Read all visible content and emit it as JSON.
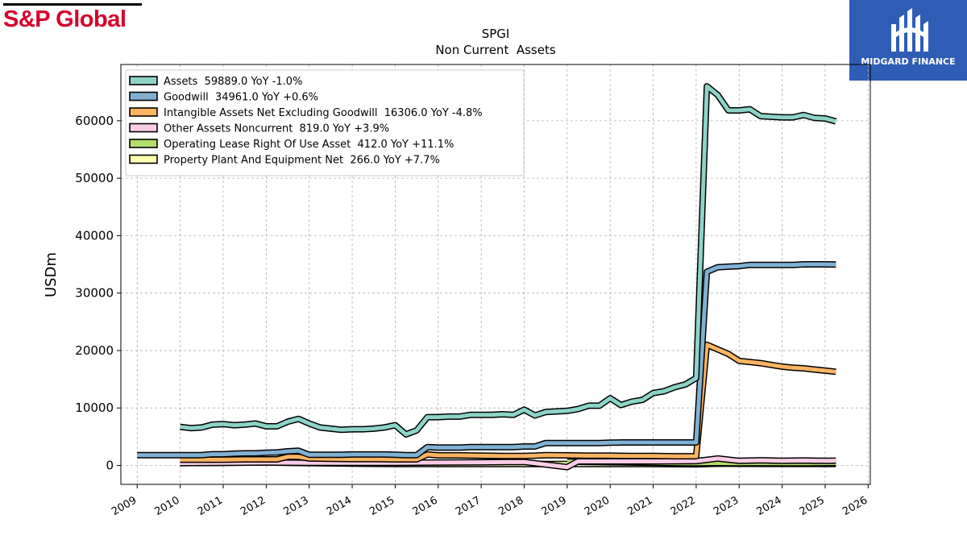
{
  "brand": {
    "name": "S&P Global"
  },
  "badge": {
    "text": "MIDGARD FINANCE"
  },
  "chart_data": {
    "type": "line",
    "title": "SPGI",
    "subtitle": "Non Current  Assets",
    "ylabel": "USDm",
    "xlabel": "",
    "xlim": [
      2008.62,
      2026.05
    ],
    "ylim": [
      -3300,
      69800
    ],
    "xticks": [
      2009,
      2010,
      2011,
      2012,
      2013,
      2014,
      2015,
      2016,
      2017,
      2018,
      2019,
      2020,
      2021,
      2022,
      2023,
      2024,
      2025,
      2026
    ],
    "yticks": [
      0,
      10000,
      20000,
      30000,
      40000,
      50000,
      60000
    ],
    "grid": true,
    "legend_position": "top-left",
    "series": [
      {
        "name": "Assets  59889.0 YoY -1.0%",
        "color": "#8dd3c7",
        "points": [
          [
            2010.0,
            6700
          ],
          [
            2010.25,
            6500
          ],
          [
            2010.5,
            6600
          ],
          [
            2010.75,
            7100
          ],
          [
            2011.0,
            7200
          ],
          [
            2011.25,
            7000
          ],
          [
            2011.5,
            7100
          ],
          [
            2011.75,
            7300
          ],
          [
            2012.0,
            6800
          ],
          [
            2012.25,
            6800
          ],
          [
            2012.5,
            7600
          ],
          [
            2012.75,
            8100
          ],
          [
            2013.0,
            7300
          ],
          [
            2013.25,
            6600
          ],
          [
            2013.5,
            6400
          ],
          [
            2013.75,
            6200
          ],
          [
            2014.0,
            6300
          ],
          [
            2014.25,
            6300
          ],
          [
            2014.5,
            6400
          ],
          [
            2014.75,
            6600
          ],
          [
            2015.0,
            7000
          ],
          [
            2015.25,
            5400
          ],
          [
            2015.5,
            6100
          ],
          [
            2015.75,
            8400
          ],
          [
            2016.0,
            8400
          ],
          [
            2016.25,
            8500
          ],
          [
            2016.5,
            8500
          ],
          [
            2016.75,
            8800
          ],
          [
            2017.0,
            8800
          ],
          [
            2017.25,
            8800
          ],
          [
            2017.5,
            8900
          ],
          [
            2017.75,
            8800
          ],
          [
            2018.0,
            9700
          ],
          [
            2018.25,
            8700
          ],
          [
            2018.5,
            9300
          ],
          [
            2018.75,
            9400
          ],
          [
            2019.0,
            9500
          ],
          [
            2019.25,
            9800
          ],
          [
            2019.5,
            10400
          ],
          [
            2019.75,
            10400
          ],
          [
            2020.0,
            11700
          ],
          [
            2020.25,
            10500
          ],
          [
            2020.5,
            11100
          ],
          [
            2020.75,
            11400
          ],
          [
            2021.0,
            12600
          ],
          [
            2021.25,
            12900
          ],
          [
            2021.5,
            13600
          ],
          [
            2021.75,
            14100
          ],
          [
            2022.0,
            15200
          ],
          [
            2022.25,
            66000
          ],
          [
            2022.5,
            64500
          ],
          [
            2022.75,
            61800
          ],
          [
            2023.0,
            61800
          ],
          [
            2023.25,
            62000
          ],
          [
            2023.5,
            60800
          ],
          [
            2023.75,
            60700
          ],
          [
            2024.0,
            60600
          ],
          [
            2024.25,
            60600
          ],
          [
            2024.5,
            61000
          ],
          [
            2024.75,
            60500
          ],
          [
            2025.0,
            60400
          ],
          [
            2025.25,
            59889
          ]
        ]
      },
      {
        "name": "Goodwill  34961.0 YoY +0.6%",
        "color": "#80b1d3",
        "points": [
          [
            2009.0,
            1800
          ],
          [
            2009.5,
            1800
          ],
          [
            2010.0,
            1800
          ],
          [
            2010.25,
            1800
          ],
          [
            2010.5,
            1800
          ],
          [
            2010.75,
            1950
          ],
          [
            2011.0,
            1950
          ],
          [
            2011.25,
            2050
          ],
          [
            2011.5,
            2100
          ],
          [
            2011.75,
            2100
          ],
          [
            2012.0,
            2200
          ],
          [
            2012.25,
            2250
          ],
          [
            2012.5,
            2450
          ],
          [
            2012.75,
            2550
          ],
          [
            2013.0,
            1850
          ],
          [
            2013.25,
            1850
          ],
          [
            2013.5,
            1850
          ],
          [
            2013.75,
            1850
          ],
          [
            2014.0,
            1900
          ],
          [
            2014.25,
            1900
          ],
          [
            2014.5,
            1900
          ],
          [
            2014.75,
            1900
          ],
          [
            2015.0,
            1850
          ],
          [
            2015.25,
            1800
          ],
          [
            2015.5,
            1800
          ],
          [
            2015.75,
            3200
          ],
          [
            2016.0,
            3100
          ],
          [
            2016.25,
            3100
          ],
          [
            2016.5,
            3100
          ],
          [
            2016.75,
            3200
          ],
          [
            2017.0,
            3200
          ],
          [
            2017.25,
            3200
          ],
          [
            2017.5,
            3200
          ],
          [
            2017.75,
            3200
          ],
          [
            2018.0,
            3300
          ],
          [
            2018.25,
            3300
          ],
          [
            2018.5,
            3900
          ],
          [
            2018.75,
            3900
          ],
          [
            2019.0,
            3900
          ],
          [
            2019.25,
            3900
          ],
          [
            2019.5,
            3900
          ],
          [
            2019.75,
            3900
          ],
          [
            2020.0,
            3950
          ],
          [
            2020.25,
            4000
          ],
          [
            2020.5,
            4000
          ],
          [
            2020.75,
            4000
          ],
          [
            2021.0,
            4000
          ],
          [
            2021.25,
            4000
          ],
          [
            2021.5,
            4000
          ],
          [
            2021.75,
            4000
          ],
          [
            2022.0,
            4000
          ],
          [
            2022.25,
            33700
          ],
          [
            2022.5,
            34500
          ],
          [
            2022.75,
            34600
          ],
          [
            2023.0,
            34700
          ],
          [
            2023.25,
            34900
          ],
          [
            2023.5,
            34900
          ],
          [
            2023.75,
            34900
          ],
          [
            2024.0,
            34900
          ],
          [
            2024.25,
            34900
          ],
          [
            2024.5,
            35000
          ],
          [
            2024.75,
            35000
          ],
          [
            2025.0,
            35000
          ],
          [
            2025.25,
            34961
          ]
        ]
      },
      {
        "name": "Intangible Assets Net Excluding Goodwill  16306.0 YoY -4.8%",
        "color": "#fdb462",
        "points": [
          [
            2010.0,
            1000
          ],
          [
            2010.5,
            1000
          ],
          [
            2011.0,
            1000
          ],
          [
            2011.5,
            1050
          ],
          [
            2012.0,
            1050
          ],
          [
            2012.25,
            1050
          ],
          [
            2012.5,
            1500
          ],
          [
            2012.75,
            1500
          ],
          [
            2013.0,
            1200
          ],
          [
            2013.5,
            1150
          ],
          [
            2014.0,
            1100
          ],
          [
            2014.5,
            1100
          ],
          [
            2015.0,
            1050
          ],
          [
            2015.5,
            1050
          ],
          [
            2015.75,
            1900
          ],
          [
            2016.0,
            1750
          ],
          [
            2016.5,
            1750
          ],
          [
            2017.0,
            1700
          ],
          [
            2017.5,
            1650
          ],
          [
            2018.0,
            1650
          ],
          [
            2018.25,
            1700
          ],
          [
            2018.5,
            1800
          ],
          [
            2019.0,
            1750
          ],
          [
            2019.5,
            1700
          ],
          [
            2020.0,
            1700
          ],
          [
            2020.5,
            1650
          ],
          [
            2021.0,
            1650
          ],
          [
            2021.5,
            1600
          ],
          [
            2022.0,
            1600
          ],
          [
            2022.25,
            21000
          ],
          [
            2022.5,
            20200
          ],
          [
            2022.75,
            19400
          ],
          [
            2023.0,
            18200
          ],
          [
            2023.25,
            18000
          ],
          [
            2023.5,
            17800
          ],
          [
            2023.75,
            17500
          ],
          [
            2024.0,
            17200
          ],
          [
            2024.25,
            17000
          ],
          [
            2024.5,
            16900
          ],
          [
            2024.75,
            16700
          ],
          [
            2025.0,
            16500
          ],
          [
            2025.25,
            16306
          ]
        ]
      },
      {
        "name": "Other Assets Noncurrent  819.0 YoY +3.9%",
        "color": "#fccde5",
        "points": [
          [
            2010.0,
            400
          ],
          [
            2011.0,
            450
          ],
          [
            2012.0,
            500
          ],
          [
            2013.0,
            450
          ],
          [
            2014.0,
            450
          ],
          [
            2015.0,
            450
          ],
          [
            2016.0,
            500
          ],
          [
            2017.0,
            550
          ],
          [
            2018.0,
            600
          ],
          [
            2019.0,
            -300
          ],
          [
            2019.25,
            700
          ],
          [
            2020.0,
            700
          ],
          [
            2021.0,
            700
          ],
          [
            2022.0,
            750
          ],
          [
            2022.5,
            1200
          ],
          [
            2023.0,
            800
          ],
          [
            2023.5,
            900
          ],
          [
            2024.0,
            800
          ],
          [
            2024.5,
            850
          ],
          [
            2025.0,
            800
          ],
          [
            2025.25,
            819
          ]
        ]
      },
      {
        "name": "Operating Lease Right Of Use Asset  412.0 YoY +11.1%",
        "color": "#b3de69",
        "points": [
          [
            2019.0,
            650
          ],
          [
            2019.5,
            600
          ],
          [
            2020.0,
            550
          ],
          [
            2020.5,
            500
          ],
          [
            2021.0,
            450
          ],
          [
            2021.5,
            400
          ],
          [
            2022.0,
            380
          ],
          [
            2022.5,
            420
          ],
          [
            2023.0,
            380
          ],
          [
            2023.5,
            400
          ],
          [
            2024.0,
            370
          ],
          [
            2024.5,
            380
          ],
          [
            2025.0,
            400
          ],
          [
            2025.25,
            412
          ]
        ]
      },
      {
        "name": "Property Plant And Equipment Net  266.0 YoY +7.7%",
        "color": "#ffffb3",
        "points": [
          [
            2010.0,
            400
          ],
          [
            2011.0,
            450
          ],
          [
            2012.0,
            500
          ],
          [
            2013.0,
            400
          ],
          [
            2014.0,
            300
          ],
          [
            2015.0,
            250
          ],
          [
            2016.0,
            250
          ],
          [
            2017.0,
            250
          ],
          [
            2018.0,
            250
          ],
          [
            2019.0,
            250
          ],
          [
            2020.0,
            250
          ],
          [
            2021.0,
            250
          ],
          [
            2022.0,
            200
          ],
          [
            2022.5,
            300
          ],
          [
            2023.0,
            280
          ],
          [
            2024.0,
            260
          ],
          [
            2025.0,
            250
          ],
          [
            2025.25,
            266
          ]
        ]
      }
    ]
  }
}
